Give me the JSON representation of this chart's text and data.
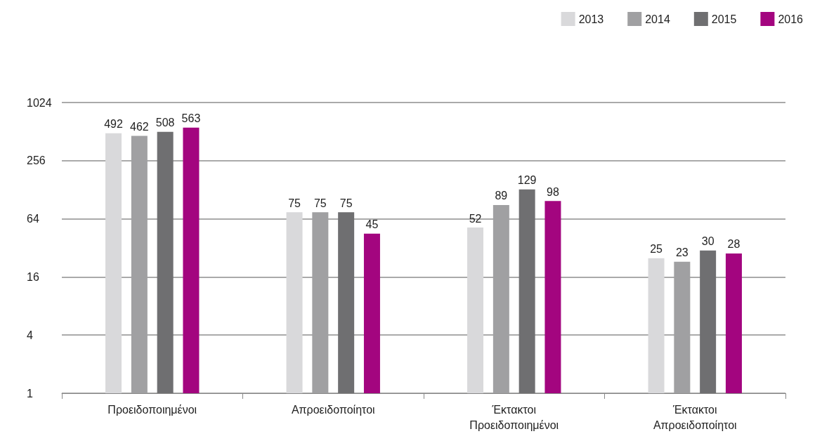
{
  "chart_data": {
    "type": "bar",
    "categories": [
      "Προειδοποιημένοι",
      "Απροειδοποίητοι",
      "Έκτακτοι Προειδοποιημένοι",
      "Έκτακτοι Απροειδοποίητοι"
    ],
    "series": [
      {
        "name": "2013",
        "color": "#d9d9db",
        "values": [
          492,
          75,
          52,
          25
        ]
      },
      {
        "name": "2014",
        "color": "#a0a0a2",
        "values": [
          462,
          75,
          89,
          23
        ]
      },
      {
        "name": "2015",
        "color": "#6f6f71",
        "values": [
          508,
          75,
          129,
          30
        ]
      },
      {
        "name": "2016",
        "color": "#a3057f",
        "values": [
          563,
          45,
          98,
          28
        ]
      }
    ],
    "log": "y",
    "ylim": [
      1,
      1024
    ],
    "yticks": [
      1,
      4,
      16,
      64,
      256,
      1024
    ],
    "grid": "y",
    "legend": "top right",
    "data_labels": true
  }
}
